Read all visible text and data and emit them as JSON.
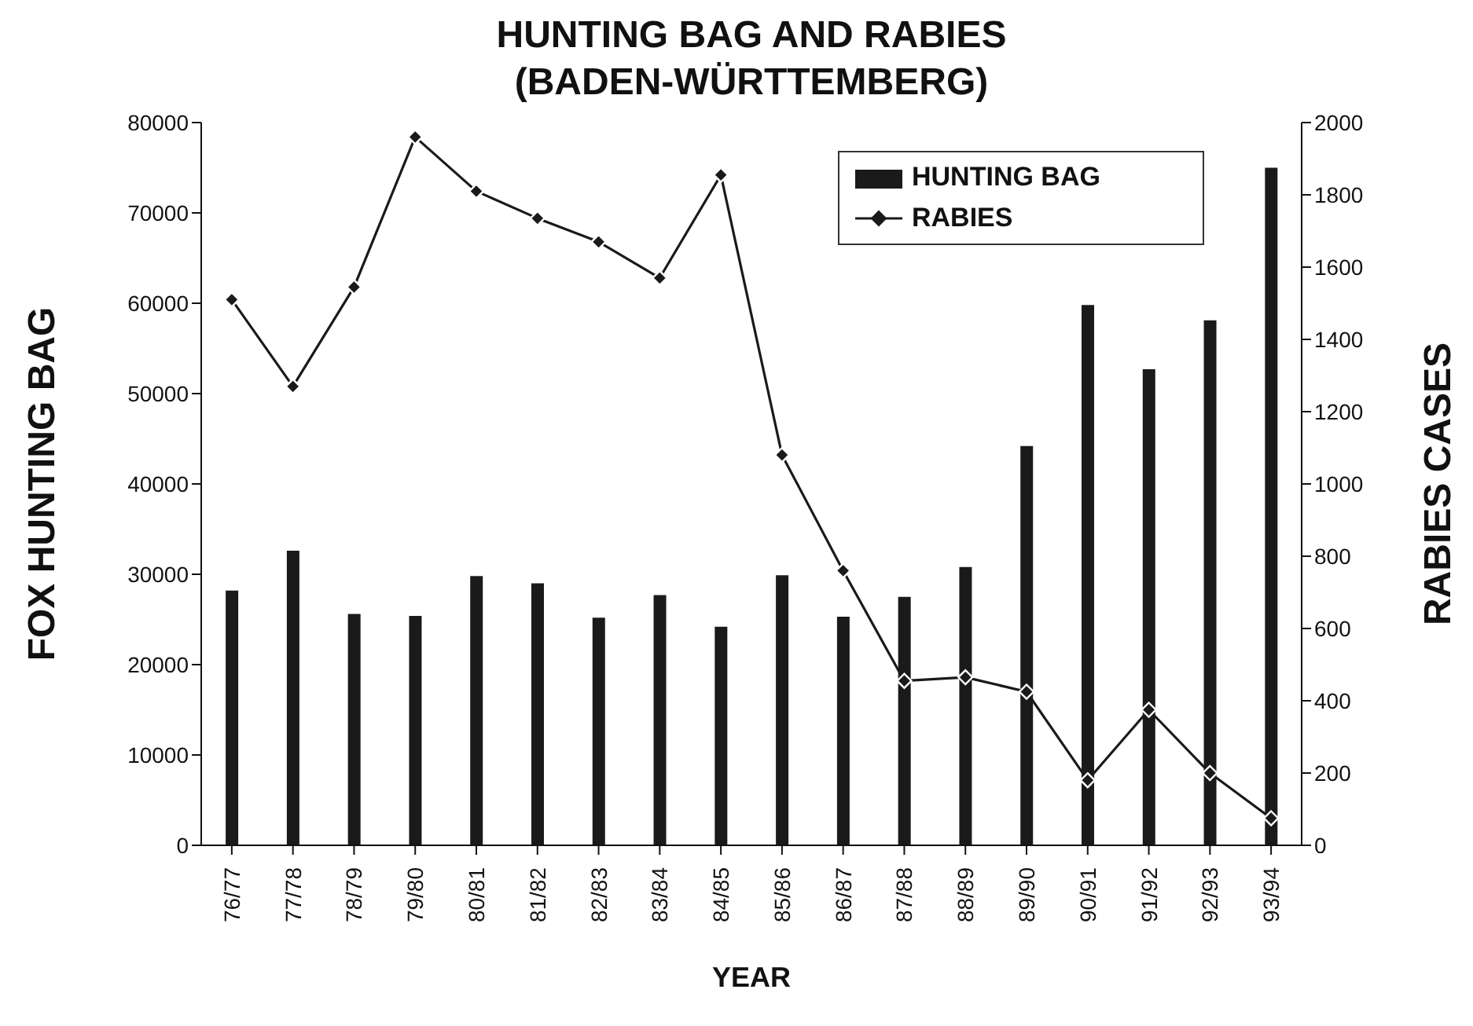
{
  "chart_data": {
    "type": "bar",
    "title": "HUNTING BAG AND RABIES\n(BADEN-WÜRTTEMBERG)",
    "xlabel": "YEAR",
    "ylabel": "FOX HUNTING BAG",
    "y2label": "RABIES CASES",
    "categories": [
      "76/77",
      "77/78",
      "78/79",
      "79/80",
      "80/81",
      "81/82",
      "82/83",
      "83/84",
      "84/85",
      "85/86",
      "86/87",
      "87/88",
      "88/89",
      "89/90",
      "90/91",
      "91/92",
      "92/93",
      "93/94"
    ],
    "series": [
      {
        "name": "HUNTING BAG",
        "color": "#1a1a1a",
        "values": [
          28200,
          32600,
          25600,
          25400,
          29800,
          29000,
          25200,
          27700,
          24200,
          29900,
          25300,
          27500,
          30800,
          44200,
          59800,
          52700,
          58100,
          75000
        ]
      },
      {
        "name": "RABIES",
        "type": "line",
        "axis": "y2",
        "color": "#1a1a1a",
        "values": [
          1510,
          1270,
          1545,
          1960,
          1810,
          1735,
          1670,
          1570,
          1855,
          1080,
          760,
          455,
          465,
          425,
          180,
          375,
          200,
          75
        ]
      }
    ],
    "ylim": [
      0,
      80000
    ],
    "yticks": [
      0,
      10000,
      20000,
      30000,
      40000,
      50000,
      60000,
      70000,
      80000
    ],
    "y2lim": [
      0,
      2000
    ],
    "y2ticks": [
      0,
      200,
      400,
      600,
      800,
      1000,
      1200,
      1400,
      1600,
      1800,
      2000
    ],
    "marker": "diamond",
    "line_style": "solid",
    "legend": "top right",
    "grid": false
  }
}
